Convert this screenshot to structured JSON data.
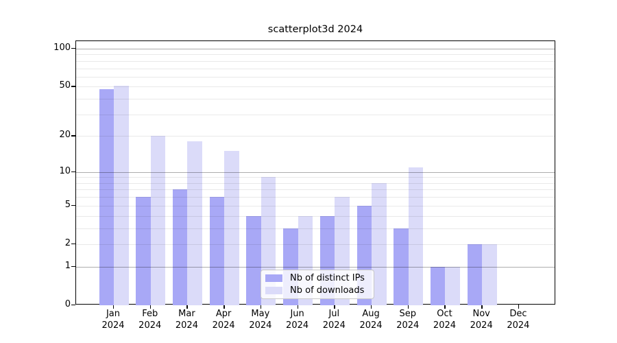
{
  "title": "scatterplot3d 2024",
  "chart_data": {
    "type": "bar",
    "title": "scatterplot3d 2024",
    "xlabel": "",
    "ylabel": "",
    "categories": [
      "Jan 2024",
      "Feb 2024",
      "Mar 2024",
      "Apr 2024",
      "May 2024",
      "Jun 2024",
      "Jul 2024",
      "Aug 2024",
      "Sep 2024",
      "Oct 2024",
      "Nov 2024",
      "Dec 2024"
    ],
    "series": [
      {
        "name": "Nb of distinct IPs",
        "color": "#a8a8f6",
        "values": [
          48,
          6,
          7,
          6,
          4,
          3,
          4,
          5,
          3,
          1,
          2,
          0
        ]
      },
      {
        "name": "Nb of downloads",
        "color": "#dbdbf9",
        "values": [
          51,
          20,
          18,
          15,
          9,
          4,
          6,
          8,
          11,
          1,
          2,
          0
        ]
      }
    ],
    "y_scale": "log10(1+v)",
    "ylim": [
      0,
      117
    ],
    "y_axis_ticks": [
      0,
      1,
      2,
      5,
      10,
      20,
      50,
      100
    ],
    "y_major_gridlines": [
      1,
      10,
      100
    ],
    "y_minor_gridlines": [
      2,
      3,
      4,
      5,
      6,
      7,
      8,
      9,
      20,
      30,
      40,
      50,
      60,
      70,
      80,
      90
    ],
    "grid": "on",
    "legend_position": "lower center"
  }
}
